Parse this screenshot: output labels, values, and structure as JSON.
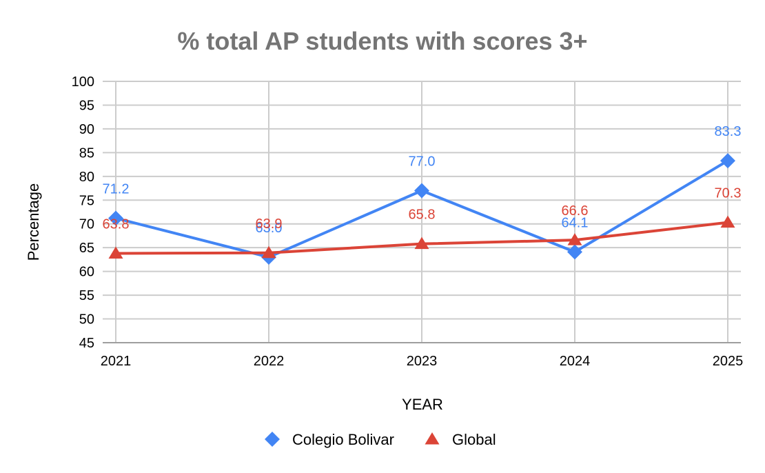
{
  "chart_data": {
    "type": "line",
    "title": "% total AP students with scores 3+",
    "xlabel": "YEAR",
    "ylabel": "Percentage",
    "x": [
      "2021",
      "2022",
      "2023",
      "2024",
      "2025"
    ],
    "ylim": [
      45,
      100
    ],
    "yticks": [
      45,
      50,
      55,
      60,
      65,
      70,
      75,
      80,
      85,
      90,
      95,
      100
    ],
    "grid": true,
    "legend": "bottom",
    "series": [
      {
        "name": "Colegio Bolivar",
        "color": "#4285f4",
        "marker": "diamond",
        "values": [
          71.2,
          63.0,
          77.0,
          64.1,
          83.3
        ],
        "labels": [
          "71.2",
          "63.0",
          "77.0",
          "64.1",
          "83.3"
        ]
      },
      {
        "name": "Global",
        "color": "#db4437",
        "marker": "triangle",
        "values": [
          63.8,
          63.9,
          65.8,
          66.6,
          70.3
        ],
        "labels": [
          "63.8",
          "63.9",
          "65.8",
          "66.6",
          "70.3"
        ]
      }
    ]
  }
}
